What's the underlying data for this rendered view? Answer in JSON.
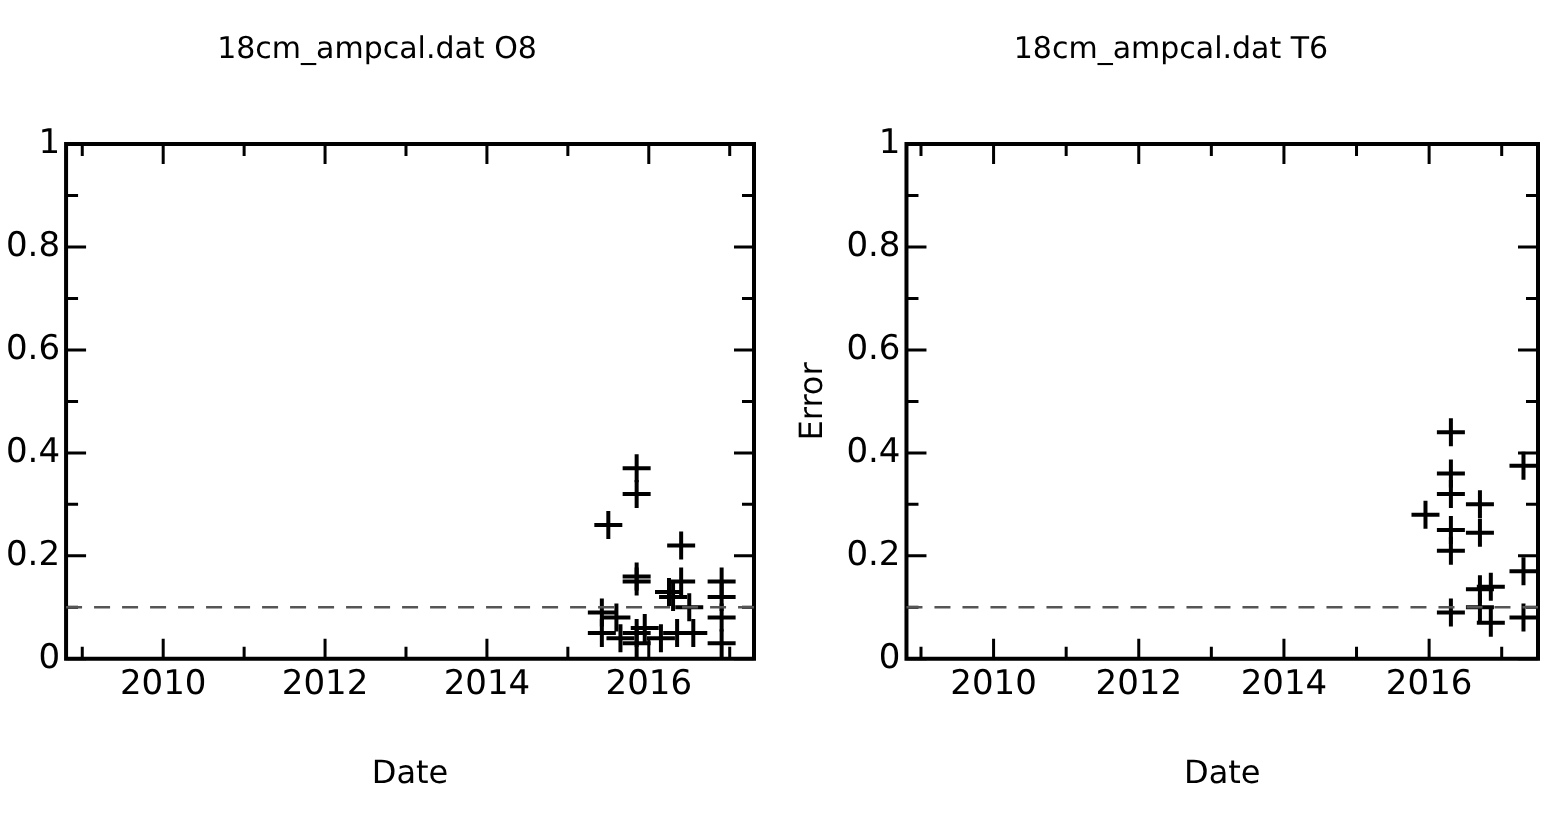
{
  "chart_data": [
    {
      "type": "scatter",
      "title": "18cm_ampcal.dat O8",
      "xlabel": "Date",
      "xlim": [
        2008.8,
        2017.3
      ],
      "ylim": [
        0,
        1
      ],
      "xticks": [
        {
          "value": 2009,
          "label": null
        },
        2010,
        {
          "value": 2011,
          "label": null
        },
        2012,
        {
          "value": 2013,
          "label": null
        },
        2014,
        {
          "value": 2015,
          "label": null
        },
        2016,
        {
          "value": 2017,
          "label": null
        }
      ],
      "yticks": [
        0,
        {
          "value": 0.1,
          "label": null
        },
        0.2,
        {
          "value": 0.3,
          "label": null
        },
        0.4,
        {
          "value": 0.5,
          "label": null
        },
        0.6,
        {
          "value": 0.7,
          "label": null
        },
        0.8,
        {
          "value": 0.9,
          "label": null
        },
        1
      ],
      "grid": false,
      "marker": "cross",
      "ref_lines": [
        {
          "axis": "y",
          "value": 0.1,
          "line_style": "dashed",
          "color": "#555555"
        }
      ],
      "series": [
        {
          "color": "#000000",
          "x": [
            2015.5,
            2015.85,
            2015.85,
            2016.4,
            2015.85,
            2015.85,
            2015.42,
            2015.42,
            2015.6,
            2015.85,
            2015.85,
            2016.25,
            2016.3,
            2016.4,
            2016.35,
            2016.55,
            2016.9,
            2016.9,
            2016.9,
            2016.9,
            2015.65,
            2015.95,
            2016.5,
            2016.15
          ],
          "values": [
            0.26,
            0.37,
            0.32,
            0.22,
            0.16,
            0.15,
            0.09,
            0.05,
            0.08,
            0.05,
            0.03,
            0.13,
            0.12,
            0.15,
            0.05,
            0.05,
            0.15,
            0.12,
            0.08,
            0.03,
            0.04,
            0.06,
            0.1,
            0.04
          ]
        }
      ]
    },
    {
      "type": "scatter",
      "title": "18cm_ampcal.dat T6",
      "xlabel": "Date",
      "ylabel": "Error",
      "xlim": [
        2008.8,
        2017.5
      ],
      "ylim": [
        0,
        1
      ],
      "xticks": [
        {
          "value": 2009,
          "label": null
        },
        2010,
        {
          "value": 2011,
          "label": null
        },
        2012,
        {
          "value": 2013,
          "label": null
        },
        2014,
        {
          "value": 2015,
          "label": null
        },
        2016,
        {
          "value": 2017,
          "label": null
        }
      ],
      "yticks": [
        0,
        {
          "value": 0.1,
          "label": null
        },
        0.2,
        {
          "value": 0.3,
          "label": null
        },
        0.4,
        {
          "value": 0.5,
          "label": null
        },
        0.6,
        {
          "value": 0.7,
          "label": null
        },
        0.8,
        {
          "value": 0.9,
          "label": null
        },
        1
      ],
      "grid": false,
      "marker": "cross",
      "ref_lines": [
        {
          "axis": "y",
          "value": 0.1,
          "line_style": "dashed",
          "color": "#555555"
        }
      ],
      "series": [
        {
          "color": "#000000",
          "x": [
            2016.3,
            2016.3,
            2016.3,
            2015.95,
            2016.7,
            2016.3,
            2016.7,
            2016.3,
            2017.3,
            2017.3,
            2016.7,
            2016.85,
            2016.7,
            2016.3,
            2017.3,
            2016.85
          ],
          "values": [
            0.44,
            0.36,
            0.32,
            0.28,
            0.3,
            0.25,
            0.245,
            0.21,
            0.375,
            0.17,
            0.135,
            0.14,
            0.1,
            0.09,
            0.08,
            0.07
          ]
        }
      ]
    }
  ]
}
